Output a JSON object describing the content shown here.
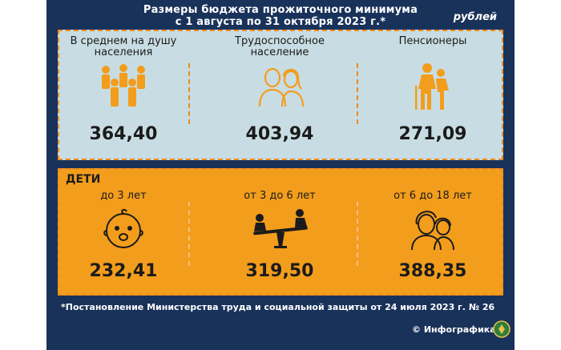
{
  "header": {
    "title_line1": "Размеры бюджета прожиточного минимума",
    "title_line2": "с 1 августа по 31 октября 2023 г.*",
    "unit": "рублей"
  },
  "adults": [
    {
      "label_line1": "В среднем на душу",
      "label_line2": "населения",
      "value": "364,40",
      "icon": "crowd-icon"
    },
    {
      "label_line1": "Трудоспособное",
      "label_line2": "население",
      "value": "403,94",
      "icon": "couple-icon"
    },
    {
      "label_line1": "Пенсионеры",
      "label_line2": "",
      "value": "271,09",
      "icon": "elderly-couple-icon"
    }
  ],
  "children": {
    "heading": "ДЕТИ",
    "items": [
      {
        "label": "до 3 лет",
        "value": "232,41",
        "icon": "baby-face-icon"
      },
      {
        "label": "от 3 до 6 лет",
        "value": "319,50",
        "icon": "seesaw-icon"
      },
      {
        "label": "от 6 до 18 лет",
        "value": "388,35",
        "icon": "teenagers-icon"
      }
    ]
  },
  "footnote": "*Постановление Министерства труда и социальной защиты от 24 июля 2023 г. № 26",
  "credit": "© Инфографика",
  "colors": {
    "navy": "#19325a",
    "orange": "#f39d1c",
    "light_blue": "#c8dde3"
  }
}
